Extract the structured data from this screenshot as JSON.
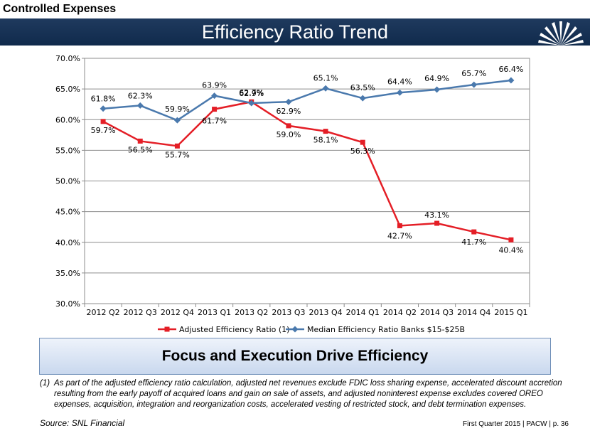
{
  "header": {
    "section_label": "Controlled Expenses",
    "title": "Efficiency Ratio Trend"
  },
  "chart_data": {
    "type": "line",
    "title": "",
    "categories": [
      "2012 Q2",
      "2012 Q3",
      "2012 Q4",
      "2013 Q1",
      "2013 Q2",
      "2013 Q3",
      "2013 Q4",
      "2014 Q1",
      "2014 Q2",
      "2014 Q3",
      "2014 Q4",
      "2015 Q1"
    ],
    "ylim": [
      30,
      70
    ],
    "yticks": [
      "30.0%",
      "35.0%",
      "40.0%",
      "45.0%",
      "50.0%",
      "55.0%",
      "60.0%",
      "65.0%",
      "70.0%"
    ],
    "series": [
      {
        "name": "Adjusted Efficiency Ratio (1)",
        "color": "#e41e26",
        "marker": "square",
        "values": [
          59.7,
          56.5,
          55.7,
          61.7,
          62.9,
          59.0,
          58.1,
          56.3,
          42.7,
          43.1,
          41.7,
          40.4
        ],
        "labels": [
          "59.7%",
          "56.5%",
          "55.7%",
          "61.7%",
          "62.9%",
          "59.0%",
          "58.1%",
          "56.3%",
          "42.7%",
          "43.1%",
          "41.7%",
          "40.4%"
        ]
      },
      {
        "name": "Median Efficiency Ratio Banks $15-$25B",
        "color": "#4a79ad",
        "marker": "diamond",
        "values": [
          61.8,
          62.3,
          59.9,
          63.9,
          62.7,
          62.9,
          65.1,
          63.5,
          64.4,
          64.9,
          65.7,
          66.4
        ],
        "labels": [
          "61.8%",
          "62.3%",
          "59.9%",
          "63.9%",
          "62.7%",
          "62.9%",
          "65.1%",
          "63.5%",
          "64.4%",
          "64.9%",
          "65.7%",
          "66.4%"
        ]
      }
    ],
    "grid": true,
    "legend": "bottom-center"
  },
  "callout": "Focus and Execution Drive Efficiency",
  "footnote": {
    "number": "(1)",
    "text": "As part of the adjusted efficiency ratio calculation, adjusted net revenues exclude FDIC loss sharing expense, accelerated discount accretion resulting from the early payoff of acquired loans and gain on sale of assets, and adjusted noninterest expense excludes covered OREO expenses, acquisition, integration and reorganization costs, accelerated vesting of restricted stock, and debt termination expenses."
  },
  "source": "Source: SNL Financial",
  "page_footer": "First Quarter 2015 | PACW | p. 36",
  "colors": {
    "header_bg": "#1a3558",
    "accent": "#4a79ad",
    "red": "#e41e26"
  }
}
